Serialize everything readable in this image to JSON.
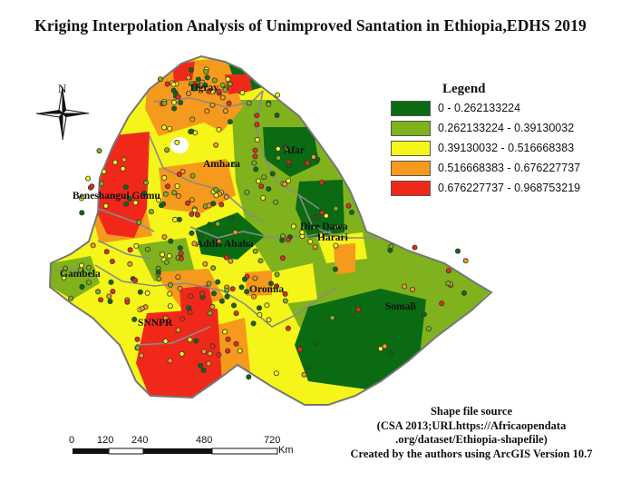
{
  "title": "Kriging Interpolation Analysis of Unimproved Santation in Ethiopia,EDHS 2019",
  "north_label": "N",
  "legend": {
    "title": "Legend",
    "classes": [
      {
        "label": "0 - 0.262133224",
        "color": "#0a6b12"
      },
      {
        "label": "0.262133224 - 0.39130032",
        "color": "#7fb21c"
      },
      {
        "label": "0.39130032 - 0.516668383",
        "color": "#f5f519"
      },
      {
        "label": "0.516668383 - 0.676227737",
        "color": "#f59a1c"
      },
      {
        "label": "0.676227737 - 0.968753219",
        "color": "#f0281a"
      }
    ]
  },
  "regions": [
    {
      "label": "Tigray"
    },
    {
      "label": "Afar"
    },
    {
      "label": "Amhara"
    },
    {
      "label": "Beneshangul Gumu"
    },
    {
      "label": "Dire Dawa"
    },
    {
      "label": "Addis Ababa"
    },
    {
      "label": "Harari"
    },
    {
      "label": "Gambela"
    },
    {
      "label": "Oromia"
    },
    {
      "label": "Somali"
    },
    {
      "label": "SNNPR"
    }
  ],
  "scale_bar": {
    "ticks": [
      "0",
      "120",
      "240",
      "480",
      "720"
    ],
    "unit": "Km"
  },
  "source_lines": [
    "Shape file source",
    "(CSA 2013;URLhttps://Africaopendata",
    ".org/dataset/Ethiopia-shapefile)",
    "Created by the authors using ArcGIS Version 10.7"
  ]
}
